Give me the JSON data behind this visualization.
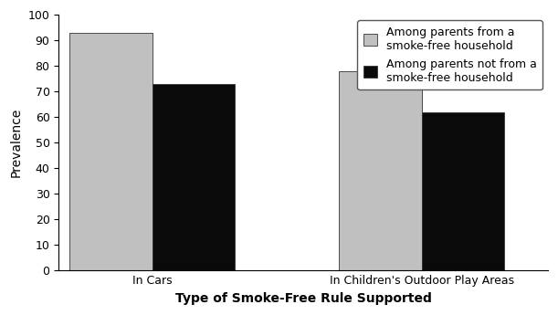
{
  "categories": [
    "In Cars",
    "In Children's Outdoor Play Areas"
  ],
  "series": [
    {
      "label": "Among parents from a\nsmoke-free household",
      "values": [
        93,
        78
      ],
      "color": "#c0c0c0"
    },
    {
      "label": "Among parents not from a\nsmoke-free household",
      "values": [
        73,
        62
      ],
      "color": "#0a0a0a"
    }
  ],
  "ylabel": "Prevalence",
  "xlabel": "Type of Smoke-Free Rule Supported",
  "ylim": [
    0,
    100
  ],
  "yticks": [
    0,
    10,
    20,
    30,
    40,
    50,
    60,
    70,
    80,
    90,
    100
  ],
  "bar_width": 0.38,
  "group_centers": [
    0.38,
    1.62
  ],
  "xlim": [
    -0.05,
    2.2
  ],
  "background_color": "#ffffff",
  "legend_loc": "upper right",
  "xlabel_fontsize": 10,
  "ylabel_fontsize": 10,
  "tick_fontsize": 9,
  "legend_fontsize": 9
}
